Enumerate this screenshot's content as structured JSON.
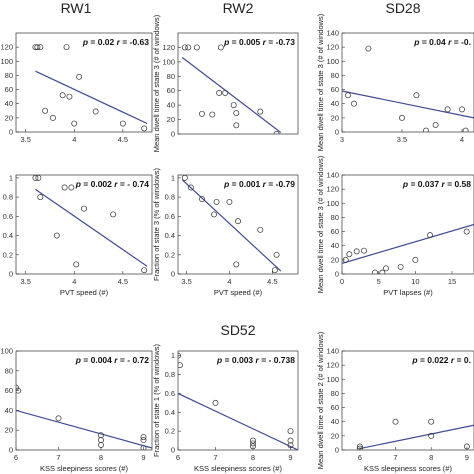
{
  "figure": {
    "group_titles": [
      {
        "text": "RW1"
      },
      {
        "text": "RW2"
      },
      {
        "text": "SD28"
      },
      {
        "text": "SD52"
      }
    ]
  },
  "chart_data": [
    {
      "type": "scatter",
      "xlabel": "",
      "ylabel": "",
      "xlim": [
        3.4,
        4.8
      ],
      "ylim": [
        0,
        140
      ],
      "xticks": [
        "3.5",
        "4",
        "4.5"
      ],
      "yticks": [
        "0",
        "20",
        "40",
        "60",
        "80",
        "100",
        "120"
      ],
      "stat_p": "0.02",
      "stat_r": "-0.63",
      "points": [
        [
          3.6,
          120
        ],
        [
          3.62,
          120
        ],
        [
          3.65,
          120
        ],
        [
          3.92,
          120
        ],
        [
          3.95,
          50
        ],
        [
          3.88,
          52
        ],
        [
          4.05,
          78
        ],
        [
          4.0,
          12
        ],
        [
          3.7,
          30
        ],
        [
          3.78,
          20
        ],
        [
          4.22,
          29
        ],
        [
          4.5,
          12
        ],
        [
          4.72,
          5
        ]
      ],
      "fit": [
        [
          3.6,
          86
        ],
        [
          4.75,
          12
        ]
      ]
    },
    {
      "type": "scatter",
      "xlabel": "",
      "ylabel": "Mean dwell time of state 3 (# of windows)",
      "xlim": [
        3.4,
        4.8
      ],
      "ylim": [
        0,
        140
      ],
      "xticks": [],
      "yticks": [
        "0",
        "20",
        "40",
        "60",
        "80",
        "100",
        "120"
      ],
      "stat_p": "0.005",
      "stat_r": "-0.73",
      "points": [
        [
          3.48,
          120
        ],
        [
          3.52,
          120
        ],
        [
          3.62,
          120
        ],
        [
          3.9,
          120
        ],
        [
          3.88,
          57
        ],
        [
          3.95,
          57
        ],
        [
          4.05,
          40
        ],
        [
          4.08,
          29
        ],
        [
          4.08,
          12
        ],
        [
          3.68,
          28
        ],
        [
          3.8,
          27
        ],
        [
          4.36,
          31
        ],
        [
          4.55,
          0
        ]
      ],
      "fit": [
        [
          3.45,
          106
        ],
        [
          4.6,
          2
        ]
      ]
    },
    {
      "type": "scatter",
      "xlabel": "",
      "ylabel": "Mean dwell time of state 3 (# of windows)",
      "xlim": [
        3.0,
        4.1
      ],
      "ylim": [
        0,
        140
      ],
      "xticks": [
        "3",
        "3.5",
        "4"
      ],
      "yticks": [
        "0",
        "20",
        "40",
        "60",
        "80",
        "100",
        "120",
        "140"
      ],
      "stat_p": "0.04",
      "stat_r": "-0.",
      "points": [
        [
          3.05,
          52
        ],
        [
          3.1,
          40
        ],
        [
          3.22,
          118
        ],
        [
          3.62,
          52
        ],
        [
          3.5,
          20
        ],
        [
          3.88,
          32
        ],
        [
          4.0,
          32
        ],
        [
          3.78,
          10
        ],
        [
          3.7,
          2
        ],
        [
          4.03,
          2
        ]
      ],
      "fit": [
        [
          3.0,
          58
        ],
        [
          4.1,
          20
        ]
      ]
    },
    {
      "type": "scatter",
      "xlabel": "PVT speed (#)",
      "ylabel": "",
      "xlim": [
        3.4,
        4.8
      ],
      "ylim": [
        0,
        1.03
      ],
      "xticks": [
        "3.5",
        "4",
        "4.5"
      ],
      "yticks": [
        "0",
        "0.2",
        "0.4",
        "0.6",
        "0.8",
        "1"
      ],
      "stat_p": "0.002",
      "stat_r": "- 0.74",
      "points": [
        [
          3.6,
          1.0
        ],
        [
          3.63,
          1.0
        ],
        [
          3.65,
          0.8
        ],
        [
          3.9,
          0.9
        ],
        [
          3.97,
          0.9
        ],
        [
          4.1,
          0.68
        ],
        [
          3.82,
          0.4
        ],
        [
          4.02,
          0.1
        ],
        [
          4.4,
          0.62
        ],
        [
          4.72,
          0.04
        ]
      ],
      "fit": [
        [
          3.6,
          0.88
        ],
        [
          4.75,
          0.08
        ]
      ]
    },
    {
      "type": "scatter",
      "xlabel": "PVT speed (#)",
      "ylabel": "Fraction of state 3 (% of windows)",
      "xlim": [
        3.4,
        4.8
      ],
      "ylim": [
        0,
        1.03
      ],
      "xticks": [
        "3.5",
        "4",
        "4.5"
      ],
      "yticks": [
        "0",
        "0.2",
        "0.4",
        "0.6",
        "0.8",
        "1"
      ],
      "stat_p": "0.001",
      "stat_r": "-0.79",
      "points": [
        [
          3.48,
          1.0
        ],
        [
          3.55,
          0.9
        ],
        [
          3.68,
          0.78
        ],
        [
          3.85,
          0.75
        ],
        [
          4.0,
          0.75
        ],
        [
          4.1,
          0.55
        ],
        [
          4.08,
          0.1
        ],
        [
          3.82,
          0.62
        ],
        [
          4.36,
          0.46
        ],
        [
          4.55,
          0.2
        ],
        [
          4.53,
          0.04
        ]
      ],
      "fit": [
        [
          3.45,
          0.98
        ],
        [
          4.6,
          0.03
        ]
      ]
    },
    {
      "type": "scatter",
      "xlabel": "PVT lapses (#)",
      "ylabel": "Mean dwell time of state 3 (# of windows)",
      "xlim": [
        0,
        18
      ],
      "ylim": [
        0,
        140
      ],
      "xticks": [
        "0",
        "5",
        "10",
        "15"
      ],
      "yticks": [
        "0",
        "20",
        "40",
        "60",
        "80",
        "100",
        "120",
        "140"
      ],
      "stat_p": "0.037",
      "stat_r": "0.58",
      "points": [
        [
          0.5,
          20
        ],
        [
          1,
          28
        ],
        [
          2,
          32
        ],
        [
          3,
          33
        ],
        [
          4.5,
          2
        ],
        [
          5.5,
          2
        ],
        [
          6,
          8
        ],
        [
          8,
          10
        ],
        [
          10,
          20
        ],
        [
          12,
          55
        ],
        [
          17,
          60
        ]
      ],
      "fit": [
        [
          0,
          15
        ],
        [
          18,
          70
        ]
      ]
    },
    {
      "type": "scatter",
      "xlabel": "KSS sleepiness scores (#)",
      "ylabel": "",
      "xlim": [
        6,
        9.2
      ],
      "ylim": [
        0,
        100
      ],
      "xticks": [
        "6",
        "7",
        "8",
        "9"
      ],
      "yticks": [
        "0",
        "20",
        "40",
        "60",
        "80",
        "100"
      ],
      "stat_p": "0.004",
      "stat_r": "- 0.72",
      "points": [
        [
          6,
          63
        ],
        [
          6.05,
          60
        ],
        [
          7,
          32
        ],
        [
          8,
          15
        ],
        [
          8,
          10
        ],
        [
          8,
          5
        ],
        [
          9,
          13
        ],
        [
          9,
          10
        ],
        [
          9,
          2
        ]
      ],
      "fit": [
        [
          6,
          40
        ],
        [
          9.2,
          2
        ]
      ]
    },
    {
      "type": "scatter",
      "xlabel": "KSS sleepiness scores (#)",
      "ylabel": "Fraction of state 1 (% of windows)",
      "xlim": [
        6,
        9.2
      ],
      "ylim": [
        0,
        1.05
      ],
      "xticks": [
        "6",
        "7",
        "8",
        "9"
      ],
      "yticks": [
        "0",
        "0.2",
        "0.4",
        "0.6",
        "0.8",
        "1"
      ],
      "stat_p": "0.003",
      "stat_r": "- 0.738",
      "points": [
        [
          6,
          1.0
        ],
        [
          6.05,
          0.9
        ],
        [
          7,
          0.5
        ],
        [
          8,
          0.1
        ],
        [
          8,
          0.07
        ],
        [
          8,
          0.04
        ],
        [
          9,
          0.2
        ],
        [
          9,
          0.1
        ],
        [
          9,
          0.05
        ]
      ],
      "fit": [
        [
          6,
          0.6
        ],
        [
          9.2,
          0.0
        ]
      ]
    },
    {
      "type": "scatter",
      "xlabel": "KSS sleepiness scores (#)",
      "ylabel": "Mean dwell time of state 2 (# of windows)",
      "xlim": [
        5.5,
        9.2
      ],
      "ylim": [
        0,
        140
      ],
      "xticks": [
        "6",
        "7",
        "8",
        "9"
      ],
      "yticks": [
        "0",
        "20",
        "40",
        "60",
        "80",
        "100",
        "120",
        "140"
      ],
      "stat_p": "0.022",
      "stat_r": "0.",
      "points": [
        [
          6,
          5
        ],
        [
          6,
          2
        ],
        [
          7,
          40
        ],
        [
          8,
          40
        ],
        [
          8,
          20
        ],
        [
          9,
          5
        ]
      ],
      "fit": [
        [
          6,
          2
        ],
        [
          9.2,
          35
        ]
      ]
    }
  ]
}
